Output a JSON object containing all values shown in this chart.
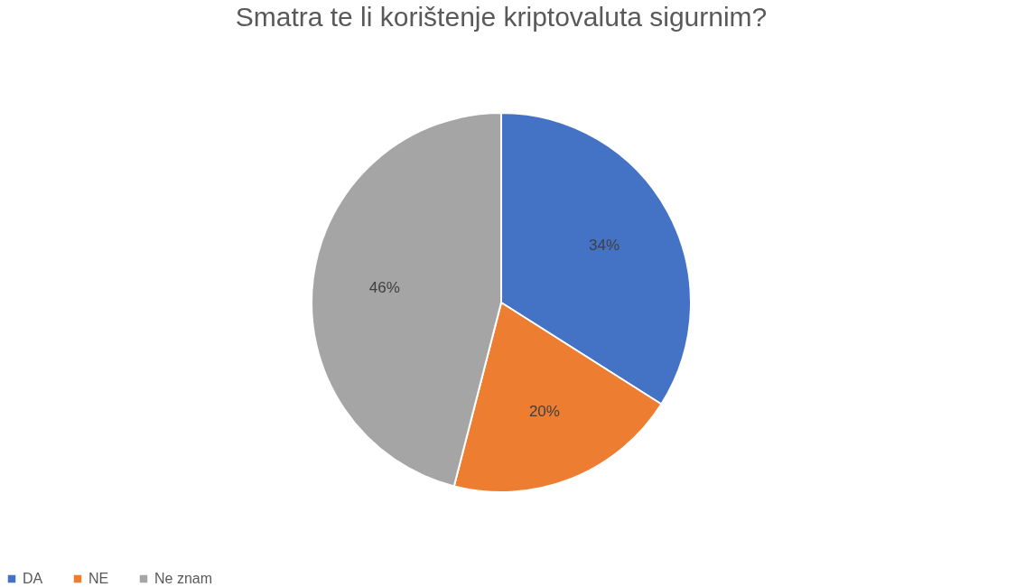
{
  "chart_data": {
    "type": "pie",
    "title": "Smatra te li korištenje kriptovaluta sigurnim?",
    "categories": [
      "DA",
      "NE",
      "Ne znam"
    ],
    "values": [
      34,
      20,
      46
    ],
    "colors": [
      "#4472c4",
      "#ed7d31",
      "#a5a5a5"
    ],
    "value_labels": [
      "34%",
      "20%",
      "46%"
    ],
    "legend": "bottom"
  }
}
